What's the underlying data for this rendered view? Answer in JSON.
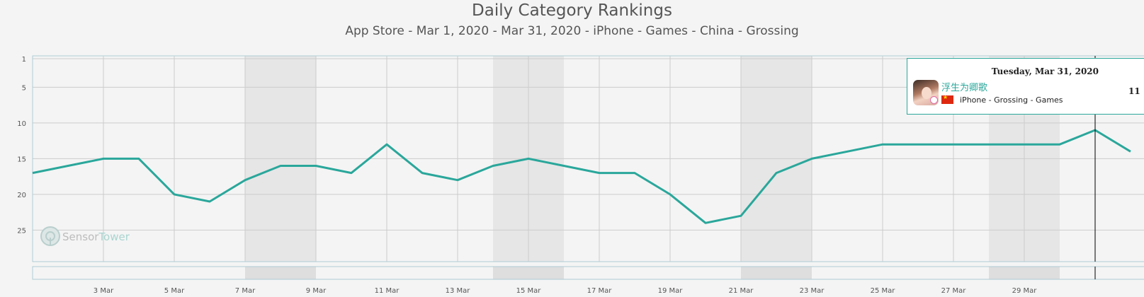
{
  "chart_data": {
    "type": "line",
    "title": "Daily Category Rankings",
    "subtitle": "App Store - Mar 1, 2020 - Mar 31, 2020 - iPhone - Games - China - Grossing",
    "x": [
      "2020-03-01",
      "2020-03-02",
      "2020-03-03",
      "2020-03-04",
      "2020-03-05",
      "2020-03-06",
      "2020-03-07",
      "2020-03-08",
      "2020-03-09",
      "2020-03-10",
      "2020-03-11",
      "2020-03-12",
      "2020-03-13",
      "2020-03-14",
      "2020-03-15",
      "2020-03-16",
      "2020-03-17",
      "2020-03-18",
      "2020-03-19",
      "2020-03-20",
      "2020-03-21",
      "2020-03-22",
      "2020-03-23",
      "2020-03-24",
      "2020-03-25",
      "2020-03-26",
      "2020-03-27",
      "2020-03-28",
      "2020-03-29",
      "2020-03-30",
      "2020-03-31",
      "2020-04-01"
    ],
    "series": [
      {
        "name": "浮生为卿歌",
        "color": "#2aa79b",
        "values": [
          17,
          16,
          15,
          15,
          20,
          21,
          18,
          16,
          16,
          17,
          13,
          17,
          18,
          16,
          15,
          16,
          17,
          17,
          20,
          24,
          23,
          17,
          15,
          14,
          13,
          13,
          13,
          13,
          13,
          13,
          11,
          14
        ]
      }
    ],
    "x_tick_labels": [
      "3 Mar",
      "5 Mar",
      "7 Mar",
      "9 Mar",
      "11 Mar",
      "13 Mar",
      "15 Mar",
      "17 Mar",
      "19 Mar",
      "21 Mar",
      "23 Mar",
      "25 Mar",
      "27 Mar",
      "29 Mar"
    ],
    "y_tick_labels": [
      "1",
      "5",
      "10",
      "15",
      "20",
      "25"
    ],
    "y_ticks": [
      1,
      5,
      10,
      15,
      20,
      25
    ],
    "ylim": [
      1,
      30
    ],
    "y_reversed": true,
    "weekend_shading": [
      [
        "2020-03-07",
        "2020-03-08"
      ],
      [
        "2020-03-14",
        "2020-03-15"
      ],
      [
        "2020-03-21",
        "2020-03-22"
      ],
      [
        "2020-03-28",
        "2020-03-29"
      ]
    ],
    "grid": true,
    "legend": "none"
  },
  "watermark": {
    "part1": "Sensor",
    "part2": "Tower"
  },
  "tooltip": {
    "date": "Tuesday, Mar 31, 2020",
    "app_name": "浮生为卿歌",
    "category": "iPhone - Grossing - Games",
    "rank": "11",
    "flag_icon": "china-flag-icon",
    "avatar_icon": "app-avatar-icon"
  },
  "colors": {
    "line": "#2aa79b",
    "grid": "#cccccc",
    "plot_border": "#aecbd3",
    "shade": "#e6e6e6",
    "background": "#f4f4f4"
  }
}
